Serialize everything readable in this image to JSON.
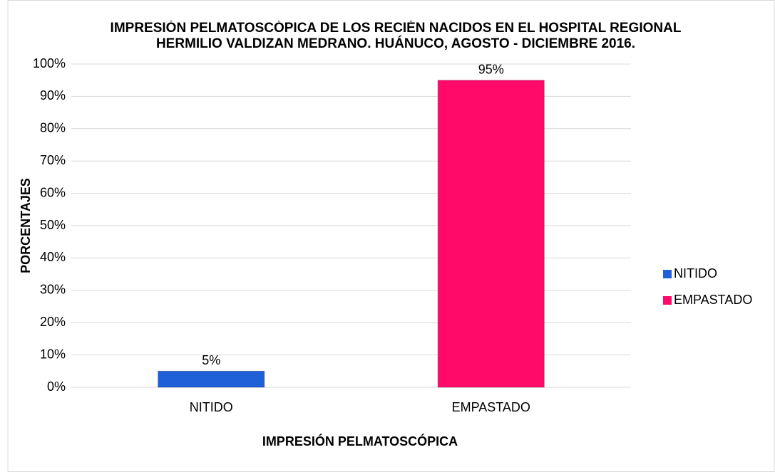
{
  "chart_data": {
    "type": "bar",
    "title": "IMPRESIÓN PELMATOSCÓPICA DE LOS RECIÉN NACIDOS EN EL HOSPITAL REGIONAL HERMILIO VALDIZAN MEDRANO. HUÁNUCO, AGOSTO - DICIEMBRE 2016.",
    "x_label": "IMPRESIÓN PELMATOSCÓPICA",
    "y_label": "PORCENTAJES",
    "categories": [
      "NITIDO",
      "EMPASTADO"
    ],
    "values": [
      5,
      95
    ],
    "value_labels": [
      "5%",
      "95%"
    ],
    "colors": [
      "#1f5fd8",
      "#ff0a68"
    ],
    "ylim": [
      0,
      100
    ],
    "yticks": [
      {
        "value": 0,
        "label": "0%"
      },
      {
        "value": 10,
        "label": "10%"
      },
      {
        "value": 20,
        "label": "20%"
      },
      {
        "value": 30,
        "label": "30%"
      },
      {
        "value": 40,
        "label": "40%"
      },
      {
        "value": 50,
        "label": "50%"
      },
      {
        "value": 60,
        "label": "60%"
      },
      {
        "value": 70,
        "label": "70%"
      },
      {
        "value": 80,
        "label": "80%"
      },
      {
        "value": 90,
        "label": "90%"
      },
      {
        "value": 100,
        "label": "100%"
      }
    ],
    "grid": true,
    "legend": "right"
  }
}
